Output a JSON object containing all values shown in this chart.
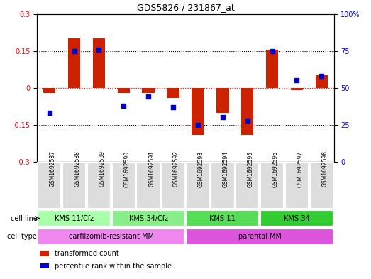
{
  "title": "GDS5826 / 231867_at",
  "samples": [
    "GSM1692587",
    "GSM1692588",
    "GSM1692589",
    "GSM1692590",
    "GSM1692591",
    "GSM1692592",
    "GSM1692593",
    "GSM1692594",
    "GSM1692595",
    "GSM1692596",
    "GSM1692597",
    "GSM1692598"
  ],
  "transformed_count": [
    -0.02,
    0.2,
    0.2,
    -0.02,
    -0.02,
    -0.04,
    -0.19,
    -0.1,
    -0.19,
    0.155,
    -0.01,
    0.05
  ],
  "percentile_rank": [
    33,
    75,
    76,
    38,
    44,
    37,
    25,
    30,
    28,
    75,
    55,
    58
  ],
  "ylim_left": [
    -0.3,
    0.3
  ],
  "ylim_right": [
    0,
    100
  ],
  "yticks_left": [
    -0.3,
    -0.15,
    0,
    0.15,
    0.3
  ],
  "yticks_right": [
    0,
    25,
    50,
    75,
    100
  ],
  "hlines": [
    0.15,
    0,
    -0.15
  ],
  "bar_color": "#cc2200",
  "dot_color": "#0000cc",
  "cell_line_groups": [
    {
      "label": "KMS-11/Cfz",
      "start": 0,
      "end": 3,
      "color": "#aaffaa"
    },
    {
      "label": "KMS-34/Cfz",
      "start": 3,
      "end": 6,
      "color": "#88ee88"
    },
    {
      "label": "KMS-11",
      "start": 6,
      "end": 9,
      "color": "#55dd55"
    },
    {
      "label": "KMS-34",
      "start": 9,
      "end": 12,
      "color": "#33cc33"
    }
  ],
  "cell_type_groups": [
    {
      "label": "carfilzomib-resistant MM",
      "start": 0,
      "end": 6,
      "color": "#ee88ee"
    },
    {
      "label": "parental MM",
      "start": 6,
      "end": 12,
      "color": "#dd55dd"
    }
  ],
  "legend_items": [
    {
      "label": "transformed count",
      "color": "#cc2200"
    },
    {
      "label": "percentile rank within the sample",
      "color": "#0000cc"
    }
  ],
  "bar_width": 0.4,
  "dot_size": 60,
  "cell_line_label": "cell line",
  "cell_type_label": "cell type"
}
